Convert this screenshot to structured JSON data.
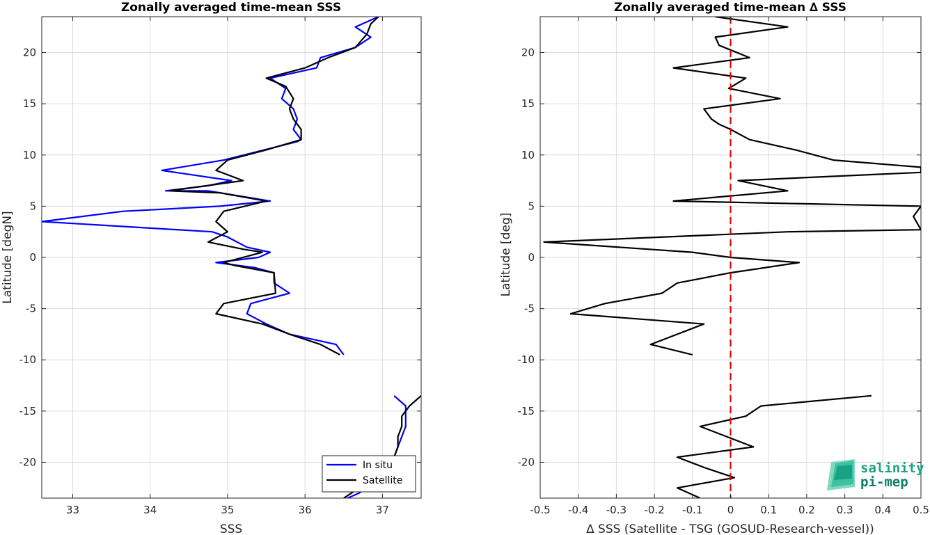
{
  "chart_data": [
    {
      "type": "line",
      "title": "Zonally averaged time-mean SSS",
      "xlabel": "SSS",
      "ylabel": "Latitude [degN]",
      "xlim": [
        32.6,
        37.5
      ],
      "ylim": [
        -23.5,
        23.5
      ],
      "xticks": [
        33,
        34,
        35,
        36,
        37
      ],
      "yticks": [
        -20,
        -15,
        -10,
        -5,
        0,
        5,
        10,
        15,
        20
      ],
      "grid": true,
      "legend_position": "bottom-right",
      "series": [
        {
          "name": "In situ",
          "color": "#0000ff",
          "segments": [
            [
              [
                36.95,
                23.5
              ],
              [
                36.65,
                22.5
              ],
              [
                36.85,
                21.5
              ],
              [
                36.65,
                20.5
              ],
              [
                36.2,
                19.5
              ],
              [
                36.15,
                18.5
              ],
              [
                35.55,
                17.5
              ],
              [
                35.75,
                16.5
              ],
              [
                35.7,
                15.5
              ],
              [
                35.85,
                14.5
              ],
              [
                35.9,
                13.5
              ],
              [
                35.85,
                12.5
              ],
              [
                35.95,
                11.5
              ],
              [
                35.9,
                11.3
              ],
              [
                34.95,
                9.5
              ],
              [
                34.15,
                8.5
              ],
              [
                35.05,
                7.5
              ],
              [
                34.75,
                7.0
              ],
              [
                34.2,
                6.5
              ],
              [
                34.75,
                6.5
              ],
              [
                35.55,
                5.5
              ],
              [
                34.9,
                5.0
              ],
              [
                33.65,
                4.5
              ],
              [
                32.6,
                3.5
              ],
              [
                34.8,
                2.5
              ],
              [
                35.0,
                2.0
              ],
              [
                35.25,
                1.0
              ],
              [
                35.55,
                0.5
              ],
              [
                35.4,
                0.0
              ],
              [
                34.85,
                -0.5
              ],
              [
                35.35,
                -1.0
              ],
              [
                35.6,
                -1.5
              ],
              [
                35.6,
                -2.5
              ],
              [
                35.8,
                -3.5
              ],
              [
                35.3,
                -4.5
              ],
              [
                35.25,
                -5.5
              ],
              [
                35.5,
                -6.5
              ],
              [
                35.8,
                -7.5
              ],
              [
                36.4,
                -8.5
              ],
              [
                36.5,
                -9.5
              ]
            ],
            [
              [
                37.15,
                -13.5
              ],
              [
                37.3,
                -14.5
              ],
              [
                37.3,
                -15.5
              ],
              [
                37.3,
                -16.5
              ],
              [
                37.25,
                -17.5
              ],
              [
                37.2,
                -18.5
              ],
              [
                37.15,
                -19.5
              ],
              [
                37.1,
                -20.5
              ],
              [
                37.05,
                -21.5
              ],
              [
                36.8,
                -22.5
              ],
              [
                36.7,
                -23.0
              ],
              [
                36.55,
                -23.5
              ]
            ]
          ]
        },
        {
          "name": "Satellite",
          "color": "#000000",
          "segments": [
            [
              [
                36.95,
                23.5
              ],
              [
                36.85,
                22.8
              ],
              [
                36.8,
                21.8
              ],
              [
                36.65,
                20.5
              ],
              [
                36.3,
                19.5
              ],
              [
                36.0,
                18.5
              ],
              [
                35.5,
                17.5
              ],
              [
                35.75,
                16.7
              ],
              [
                35.85,
                15.5
              ],
              [
                35.8,
                14.5
              ],
              [
                35.85,
                13.5
              ],
              [
                35.95,
                12.5
              ],
              [
                35.95,
                11.5
              ],
              [
                35.5,
                10.5
              ],
              [
                35.0,
                9.5
              ],
              [
                34.85,
                8.5
              ],
              [
                35.2,
                7.5
              ],
              [
                34.25,
                6.5
              ],
              [
                34.9,
                6.3
              ],
              [
                35.5,
                5.5
              ],
              [
                34.95,
                4.5
              ],
              [
                34.85,
                3.5
              ],
              [
                35.0,
                2.5
              ],
              [
                34.75,
                1.5
              ],
              [
                35.2,
                0.8
              ],
              [
                35.45,
                0.5
              ],
              [
                34.95,
                -0.5
              ],
              [
                35.1,
                -0.8
              ],
              [
                35.6,
                -1.5
              ],
              [
                35.62,
                -3.5
              ],
              [
                34.95,
                -4.5
              ],
              [
                34.85,
                -5.5
              ],
              [
                35.45,
                -6.5
              ],
              [
                35.8,
                -7.5
              ],
              [
                36.2,
                -8.5
              ],
              [
                36.45,
                -9.5
              ]
            ],
            [
              [
                37.5,
                -13.5
              ],
              [
                37.35,
                -14.5
              ],
              [
                37.25,
                -15.5
              ],
              [
                37.25,
                -16.5
              ],
              [
                37.2,
                -17.5
              ],
              [
                37.2,
                -18.5
              ],
              [
                37.15,
                -19.5
              ],
              [
                37.1,
                -20.5
              ],
              [
                37.0,
                -21.5
              ],
              [
                36.7,
                -22.5
              ],
              [
                36.5,
                -23.5
              ]
            ]
          ]
        }
      ]
    },
    {
      "type": "line",
      "title": "Zonally averaged time-mean ∆ SSS",
      "xlabel": "∆ SSS (Satellite - TSG (GOSUD-Research-vessel))",
      "ylabel": "Latitude [deg]",
      "xlim": [
        -0.5,
        0.5
      ],
      "ylim": [
        -23.5,
        23.5
      ],
      "xticks": [
        -0.5,
        -0.4,
        -0.3,
        -0.2,
        -0.1,
        0,
        0.1,
        0.2,
        0.3,
        0.4,
        0.5
      ],
      "xticklabels": [
        "-0.5",
        "-0.4",
        "-0.3",
        "-0.2",
        "-0.1",
        "0",
        "0.1",
        "0.2",
        "0.3",
        "0.4",
        "0.5"
      ],
      "yticks": [
        -20,
        -15,
        -10,
        -5,
        0,
        5,
        10,
        15,
        20
      ],
      "grid": true,
      "reference_line": {
        "x": 0,
        "color": "#e00000",
        "style": "dashed"
      },
      "series": [
        {
          "color": "#000000",
          "segments": [
            [
              [
                -0.04,
                23.5
              ],
              [
                0.15,
                22.5
              ],
              [
                -0.04,
                21.5
              ],
              [
                -0.03,
                20.7
              ],
              [
                0.05,
                19.5
              ],
              [
                -0.15,
                18.5
              ],
              [
                0.04,
                17.5
              ],
              [
                -0.005,
                16.5
              ],
              [
                0.13,
                15.5
              ],
              [
                -0.07,
                14.5
              ],
              [
                -0.05,
                13.5
              ],
              [
                -0.03,
                13.0
              ],
              [
                0.0,
                12.5
              ],
              [
                0.05,
                11.5
              ],
              [
                0.17,
                10.5
              ],
              [
                0.27,
                9.5
              ],
              [
                0.5,
                8.8
              ],
              [
                0.5,
                8.3
              ],
              [
                0.02,
                7.5
              ],
              [
                0.15,
                6.5
              ],
              [
                -0.15,
                5.5
              ],
              [
                0.5,
                5.0
              ],
              [
                0.48,
                4.0
              ],
              [
                0.5,
                2.7
              ],
              [
                0.15,
                2.5
              ],
              [
                -0.49,
                1.5
              ],
              [
                -0.1,
                0.5
              ],
              [
                0.0,
                0.0
              ],
              [
                0.18,
                -0.5
              ],
              [
                0.0,
                -1.5
              ],
              [
                -0.14,
                -2.5
              ],
              [
                -0.18,
                -3.5
              ],
              [
                -0.33,
                -4.5
              ],
              [
                -0.42,
                -5.5
              ],
              [
                -0.07,
                -6.5
              ],
              [
                -0.21,
                -8.5
              ],
              [
                -0.1,
                -9.5
              ]
            ],
            [
              [
                0.37,
                -13.5
              ],
              [
                0.08,
                -14.5
              ],
              [
                0.04,
                -15.5
              ],
              [
                -0.08,
                -16.5
              ],
              [
                0.06,
                -18.5
              ],
              [
                -0.14,
                -19.5
              ],
              [
                -0.07,
                -20.5
              ],
              [
                0.01,
                -21.5
              ],
              [
                -0.14,
                -22.5
              ],
              [
                -0.08,
                -23.5
              ]
            ]
          ]
        }
      ]
    }
  ],
  "legend": {
    "items": [
      "In situ",
      "Satellite"
    ]
  },
  "logo": {
    "line1": "salinity",
    "line2": "pi-mep"
  }
}
